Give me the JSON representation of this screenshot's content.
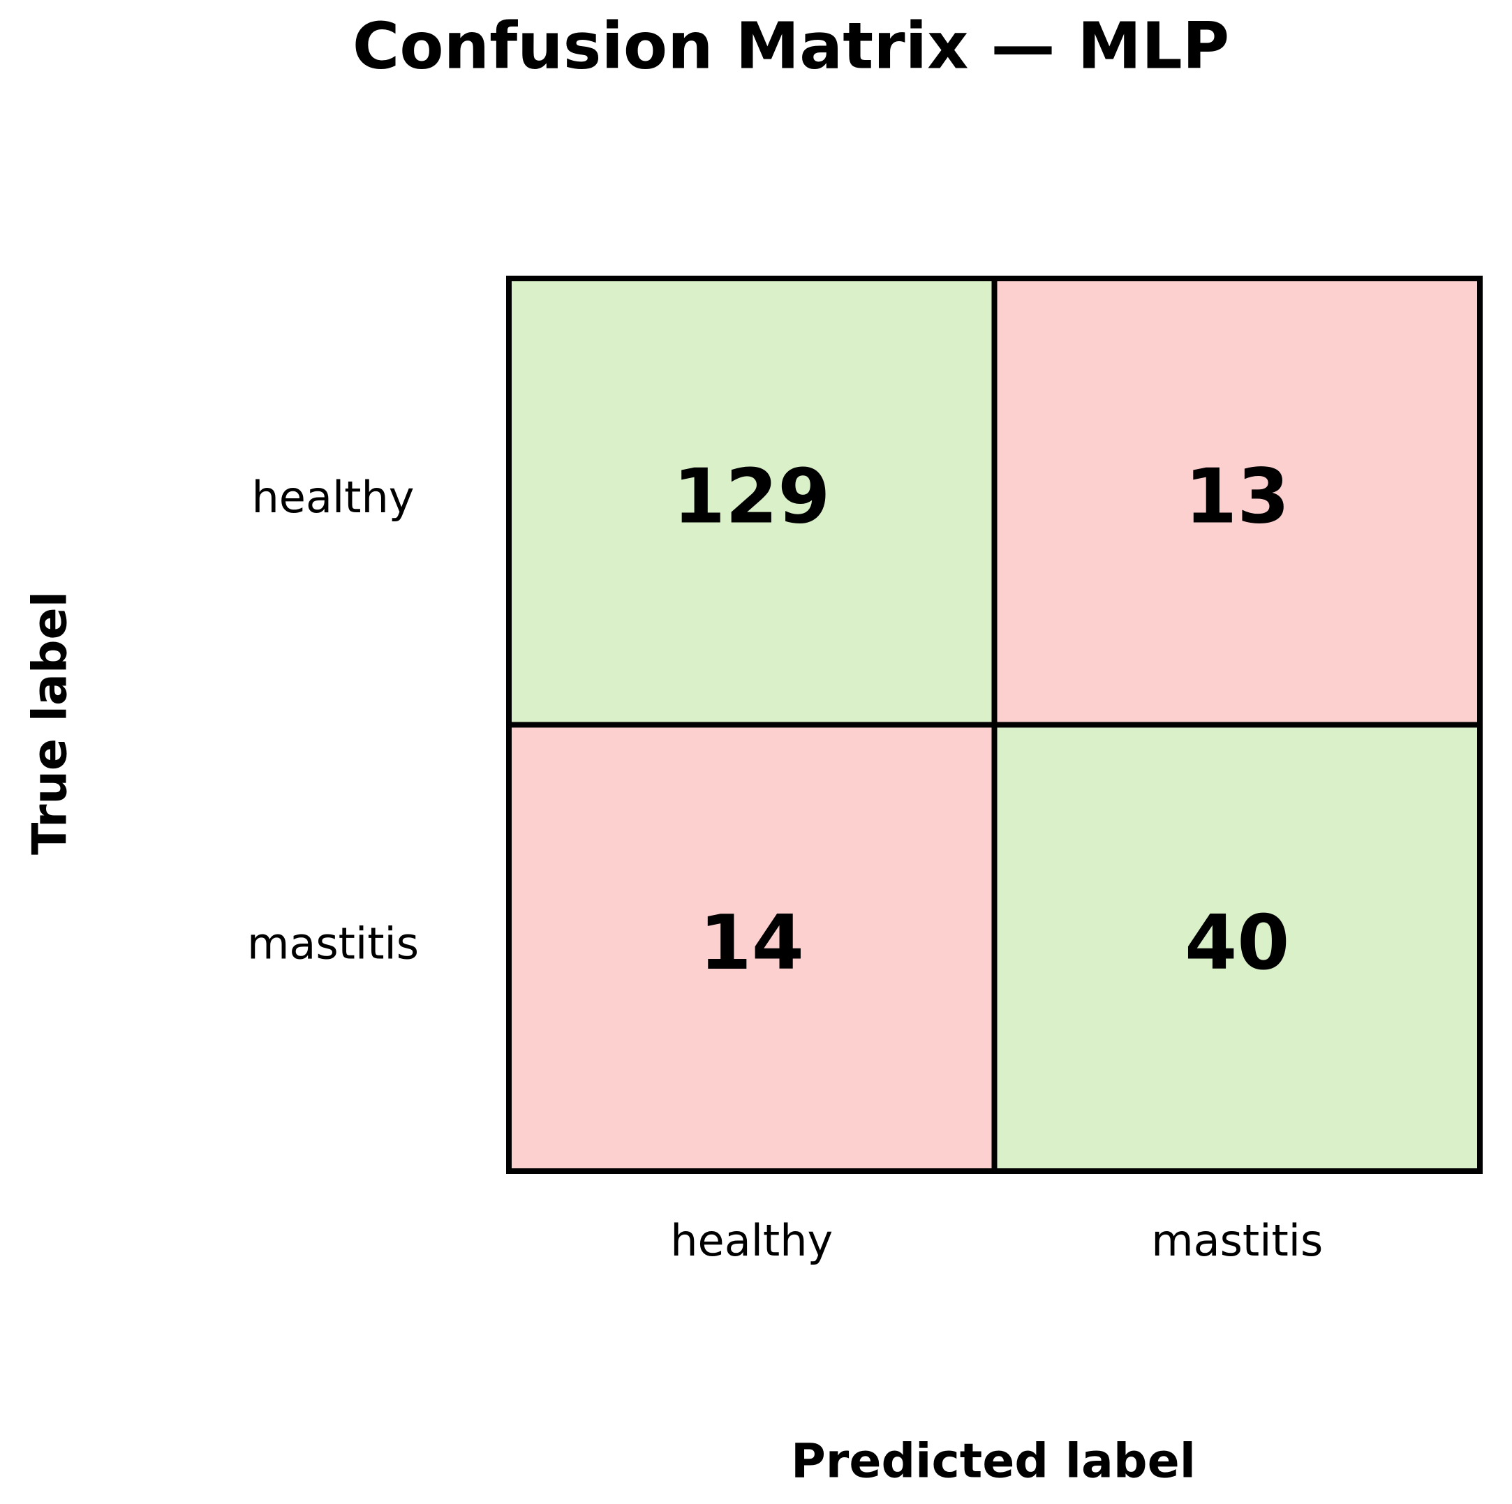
{
  "chart_data": {
    "type": "heatmap",
    "title": "Confusion Matrix — MLP",
    "xlabel": "Predicted label",
    "ylabel": "True label",
    "x_categories": [
      "healthy",
      "mastitis"
    ],
    "y_categories": [
      "healthy",
      "mastitis"
    ],
    "values": [
      [
        129,
        13
      ],
      [
        14,
        40
      ]
    ],
    "colors": [
      [
        "#d9f0c9",
        "#fdd0d0"
      ],
      [
        "#fdd0d0",
        "#d9f0c9"
      ]
    ]
  }
}
